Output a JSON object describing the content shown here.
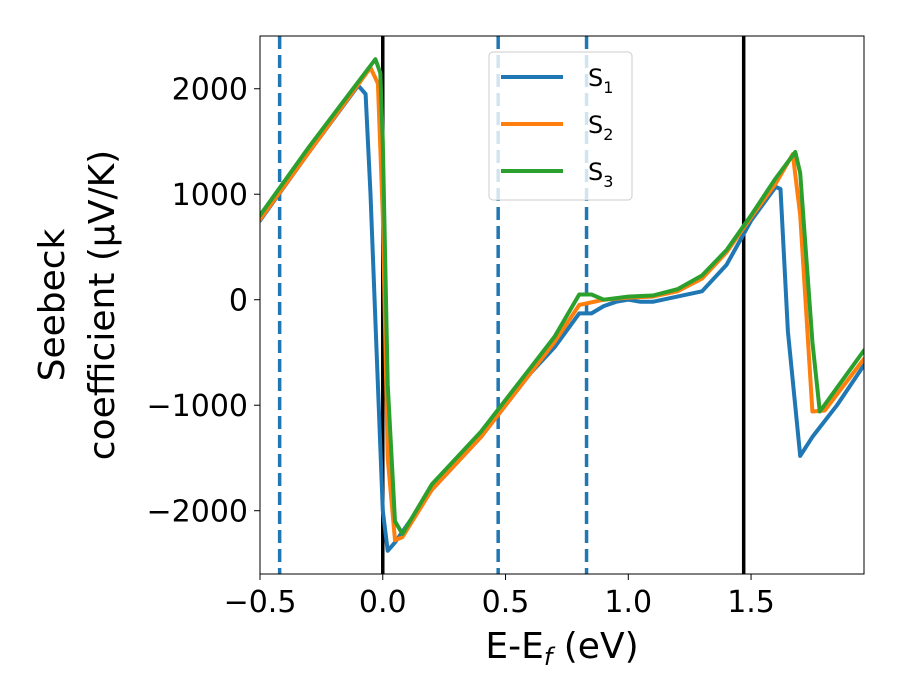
{
  "chart_data": {
    "type": "line",
    "xlabel": {
      "main": "E-E",
      "sub": "f",
      "unit": " (eV)"
    },
    "ylabel": {
      "line1": "Seebeck",
      "line2": "coefficient  (μV/K)"
    },
    "xlim": [
      -0.5,
      1.96
    ],
    "ylim": [
      -2600,
      2500
    ],
    "xticks": [
      {
        "value": -0.5,
        "label": "−0.5"
      },
      {
        "value": 0.0,
        "label": "0.0"
      },
      {
        "value": 0.5,
        "label": "0.5"
      },
      {
        "value": 1.0,
        "label": "1.0"
      },
      {
        "value": 1.5,
        "label": "1.5"
      }
    ],
    "yticks": [
      {
        "value": 2000,
        "label": "2000"
      },
      {
        "value": 1000,
        "label": "1000"
      },
      {
        "value": 0,
        "label": "0"
      },
      {
        "value": -1000,
        "label": "−1000"
      },
      {
        "value": -2000,
        "label": "−2000"
      }
    ],
    "grid": false,
    "legend_position": "top-center",
    "vlines": [
      {
        "x": -0.42,
        "style": "dashed",
        "color": "#1f77b4"
      },
      {
        "x": 0.0,
        "style": "solid",
        "color": "#000000"
      },
      {
        "x": 0.47,
        "style": "dashed",
        "color": "#1f77b4"
      },
      {
        "x": 0.83,
        "style": "dashed",
        "color": "#1f77b4"
      },
      {
        "x": 1.47,
        "style": "solid",
        "color": "#000000"
      }
    ],
    "series": [
      {
        "name": "S",
        "sub": "1",
        "color": "#1f77b4",
        "x": [
          -0.5,
          -0.3,
          -0.1,
          -0.07,
          -0.05,
          -0.03,
          0.0,
          0.02,
          0.05,
          0.2,
          0.4,
          0.6,
          0.7,
          0.8,
          0.85,
          0.9,
          0.95,
          1.0,
          1.05,
          1.1,
          1.2,
          1.3,
          1.4,
          1.5,
          1.6,
          1.62,
          1.65,
          1.7,
          1.75,
          1.85,
          1.96
        ],
        "y": [
          750,
          1400,
          2030,
          1950,
          1000,
          -200,
          -2000,
          -2380,
          -2300,
          -1800,
          -1300,
          -700,
          -450,
          -130,
          -130,
          -60,
          -20,
          0,
          -20,
          -20,
          30,
          80,
          330,
          750,
          1070,
          1050,
          -300,
          -1480,
          -1300,
          -1000,
          -620
        ]
      },
      {
        "name": "S",
        "sub": "2",
        "color": "#ff7f0e",
        "x": [
          -0.5,
          -0.3,
          -0.05,
          -0.02,
          0.0,
          0.02,
          0.05,
          0.08,
          0.2,
          0.4,
          0.6,
          0.7,
          0.8,
          0.9,
          1.0,
          1.1,
          1.2,
          1.3,
          1.4,
          1.5,
          1.6,
          1.67,
          1.7,
          1.75,
          1.8,
          1.96
        ],
        "y": [
          760,
          1400,
          2200,
          2050,
          800,
          -1500,
          -2280,
          -2250,
          -1800,
          -1300,
          -700,
          -400,
          -50,
          0,
          20,
          30,
          80,
          200,
          450,
          780,
          1100,
          1380,
          800,
          -1060,
          -1050,
          -560
        ]
      },
      {
        "name": "S",
        "sub": "3",
        "color": "#2ca02c",
        "x": [
          -0.5,
          -0.3,
          -0.03,
          -0.01,
          0.0,
          0.02,
          0.05,
          0.08,
          0.2,
          0.4,
          0.6,
          0.7,
          0.8,
          0.85,
          0.9,
          1.0,
          1.1,
          1.2,
          1.3,
          1.4,
          1.5,
          1.6,
          1.68,
          1.7,
          1.75,
          1.78,
          1.96
        ],
        "y": [
          800,
          1450,
          2280,
          2150,
          1500,
          -800,
          -2100,
          -2220,
          -1750,
          -1250,
          -650,
          -350,
          50,
          50,
          0,
          30,
          40,
          100,
          230,
          470,
          800,
          1150,
          1400,
          1200,
          -400,
          -1060,
          -480
        ]
      }
    ]
  }
}
